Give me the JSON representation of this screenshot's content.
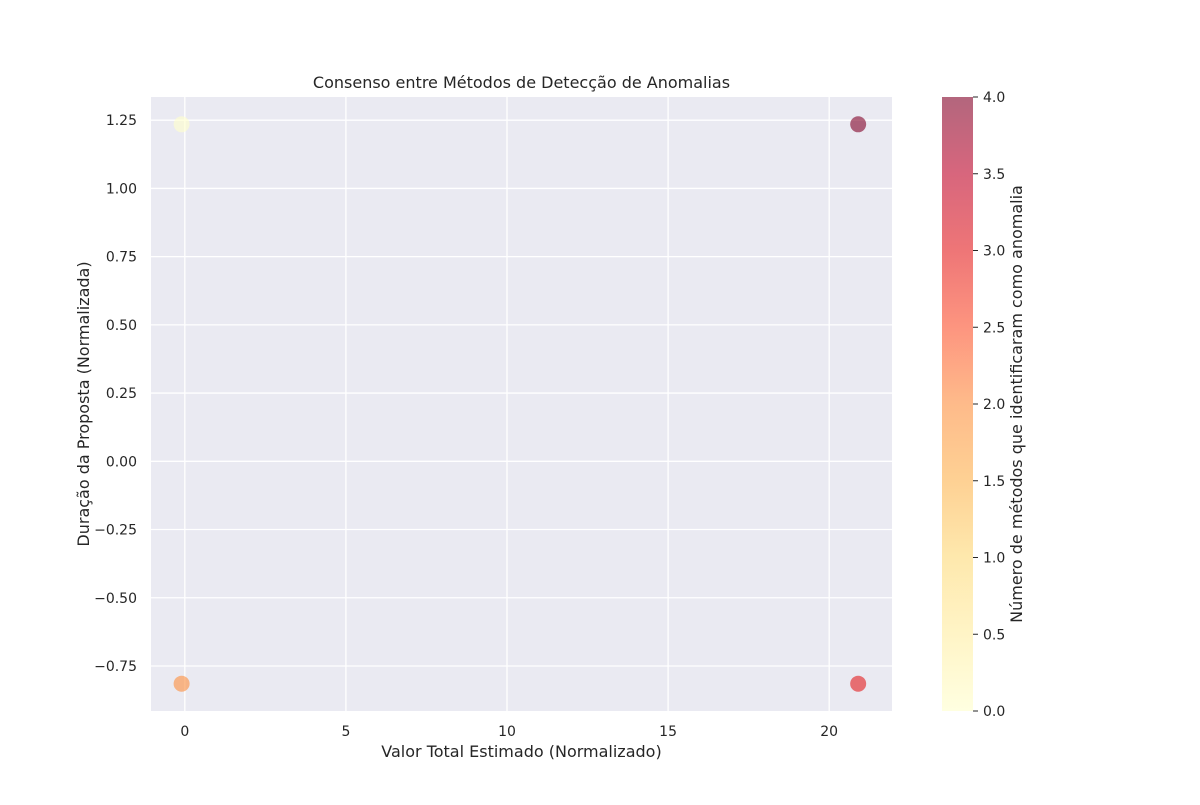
{
  "chart_data": {
    "type": "scatter",
    "title": "Consenso entre Métodos de Detecção de Anomalias",
    "xlabel": "Valor Total Estimado (Normalizado)",
    "ylabel": "Duração da Proposta (Normalizada)",
    "xlim": [
      -1.05,
      21.95
    ],
    "ylim": [
      -0.915,
      1.335
    ],
    "x_ticks": [
      0,
      5,
      10,
      15,
      20
    ],
    "y_ticks": [
      -0.75,
      -0.5,
      -0.25,
      0.0,
      0.25,
      0.5,
      0.75,
      1.0,
      1.25
    ],
    "x_tick_labels": [
      "0",
      "5",
      "10",
      "15",
      "20"
    ],
    "y_tick_labels": [
      "−0.75",
      "−0.50",
      "−0.25",
      "0.00",
      "0.25",
      "0.50",
      "0.75",
      "1.00",
      "1.25"
    ],
    "grid": true,
    "points": [
      {
        "x": -0.1,
        "y": 1.235,
        "c": 0
      },
      {
        "x": -0.1,
        "y": -0.815,
        "c": 2
      },
      {
        "x": 20.9,
        "y": 1.235,
        "c": 4
      },
      {
        "x": 20.9,
        "y": -0.815,
        "c": 3
      }
    ],
    "colorbar": {
      "label": "Número de métodos que identificaram como anomalia",
      "range": [
        0,
        4
      ],
      "ticks": [
        0.0,
        0.5,
        1.0,
        1.5,
        2.0,
        2.5,
        3.0,
        3.5,
        4.0
      ],
      "tick_labels": [
        "0.0",
        "0.5",
        "1.0",
        "1.5",
        "2.0",
        "2.5",
        "3.0",
        "3.5",
        "4.0"
      ],
      "colormap": "YlOrRd",
      "stops": [
        "#ffffcc",
        "#ffeda0",
        "#fed976",
        "#feb24c",
        "#fd8d3c",
        "#fc4e2a",
        "#e31a1c",
        "#bd0026",
        "#800026"
      ],
      "alpha": 0.6
    },
    "style": {
      "plot_background": "#eaeaf2",
      "grid_color": "#ffffff"
    }
  }
}
